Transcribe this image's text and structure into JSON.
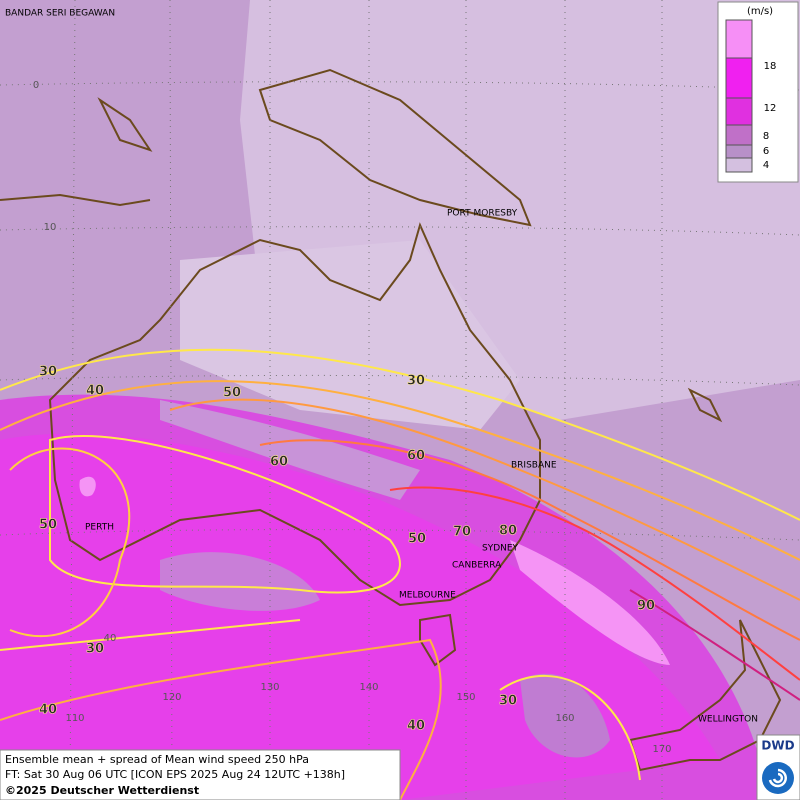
{
  "map": {
    "cities": [
      "BANDAR SERI BEGAWAN",
      "PORT MORESBY",
      "BRISBANE",
      "PERTH",
      "SYDNEY",
      "CANBERRA",
      "MELBOURNE",
      "WELLINGTON"
    ],
    "grid_labels": [
      0,
      10,
      40,
      110,
      120,
      130,
      140,
      150,
      160,
      170
    ],
    "contour_labels": [
      30,
      40,
      50,
      30,
      60,
      60,
      50,
      70,
      80,
      50,
      90,
      30,
      40,
      40,
      30
    ]
  },
  "legend": {
    "unit": "(m/s)",
    "ticks": [
      18,
      12,
      8,
      6,
      4
    ]
  },
  "footer": {
    "line1": "Ensemble mean + spread of Mean wind speed 250 hPa",
    "line2": "FT: Sat 30 Aug 06 UTC [ICON EPS 2025 Aug 24 12UTC +138h]",
    "line3": "©2025 Deutscher Wetterdienst"
  },
  "logo": "DWD"
}
